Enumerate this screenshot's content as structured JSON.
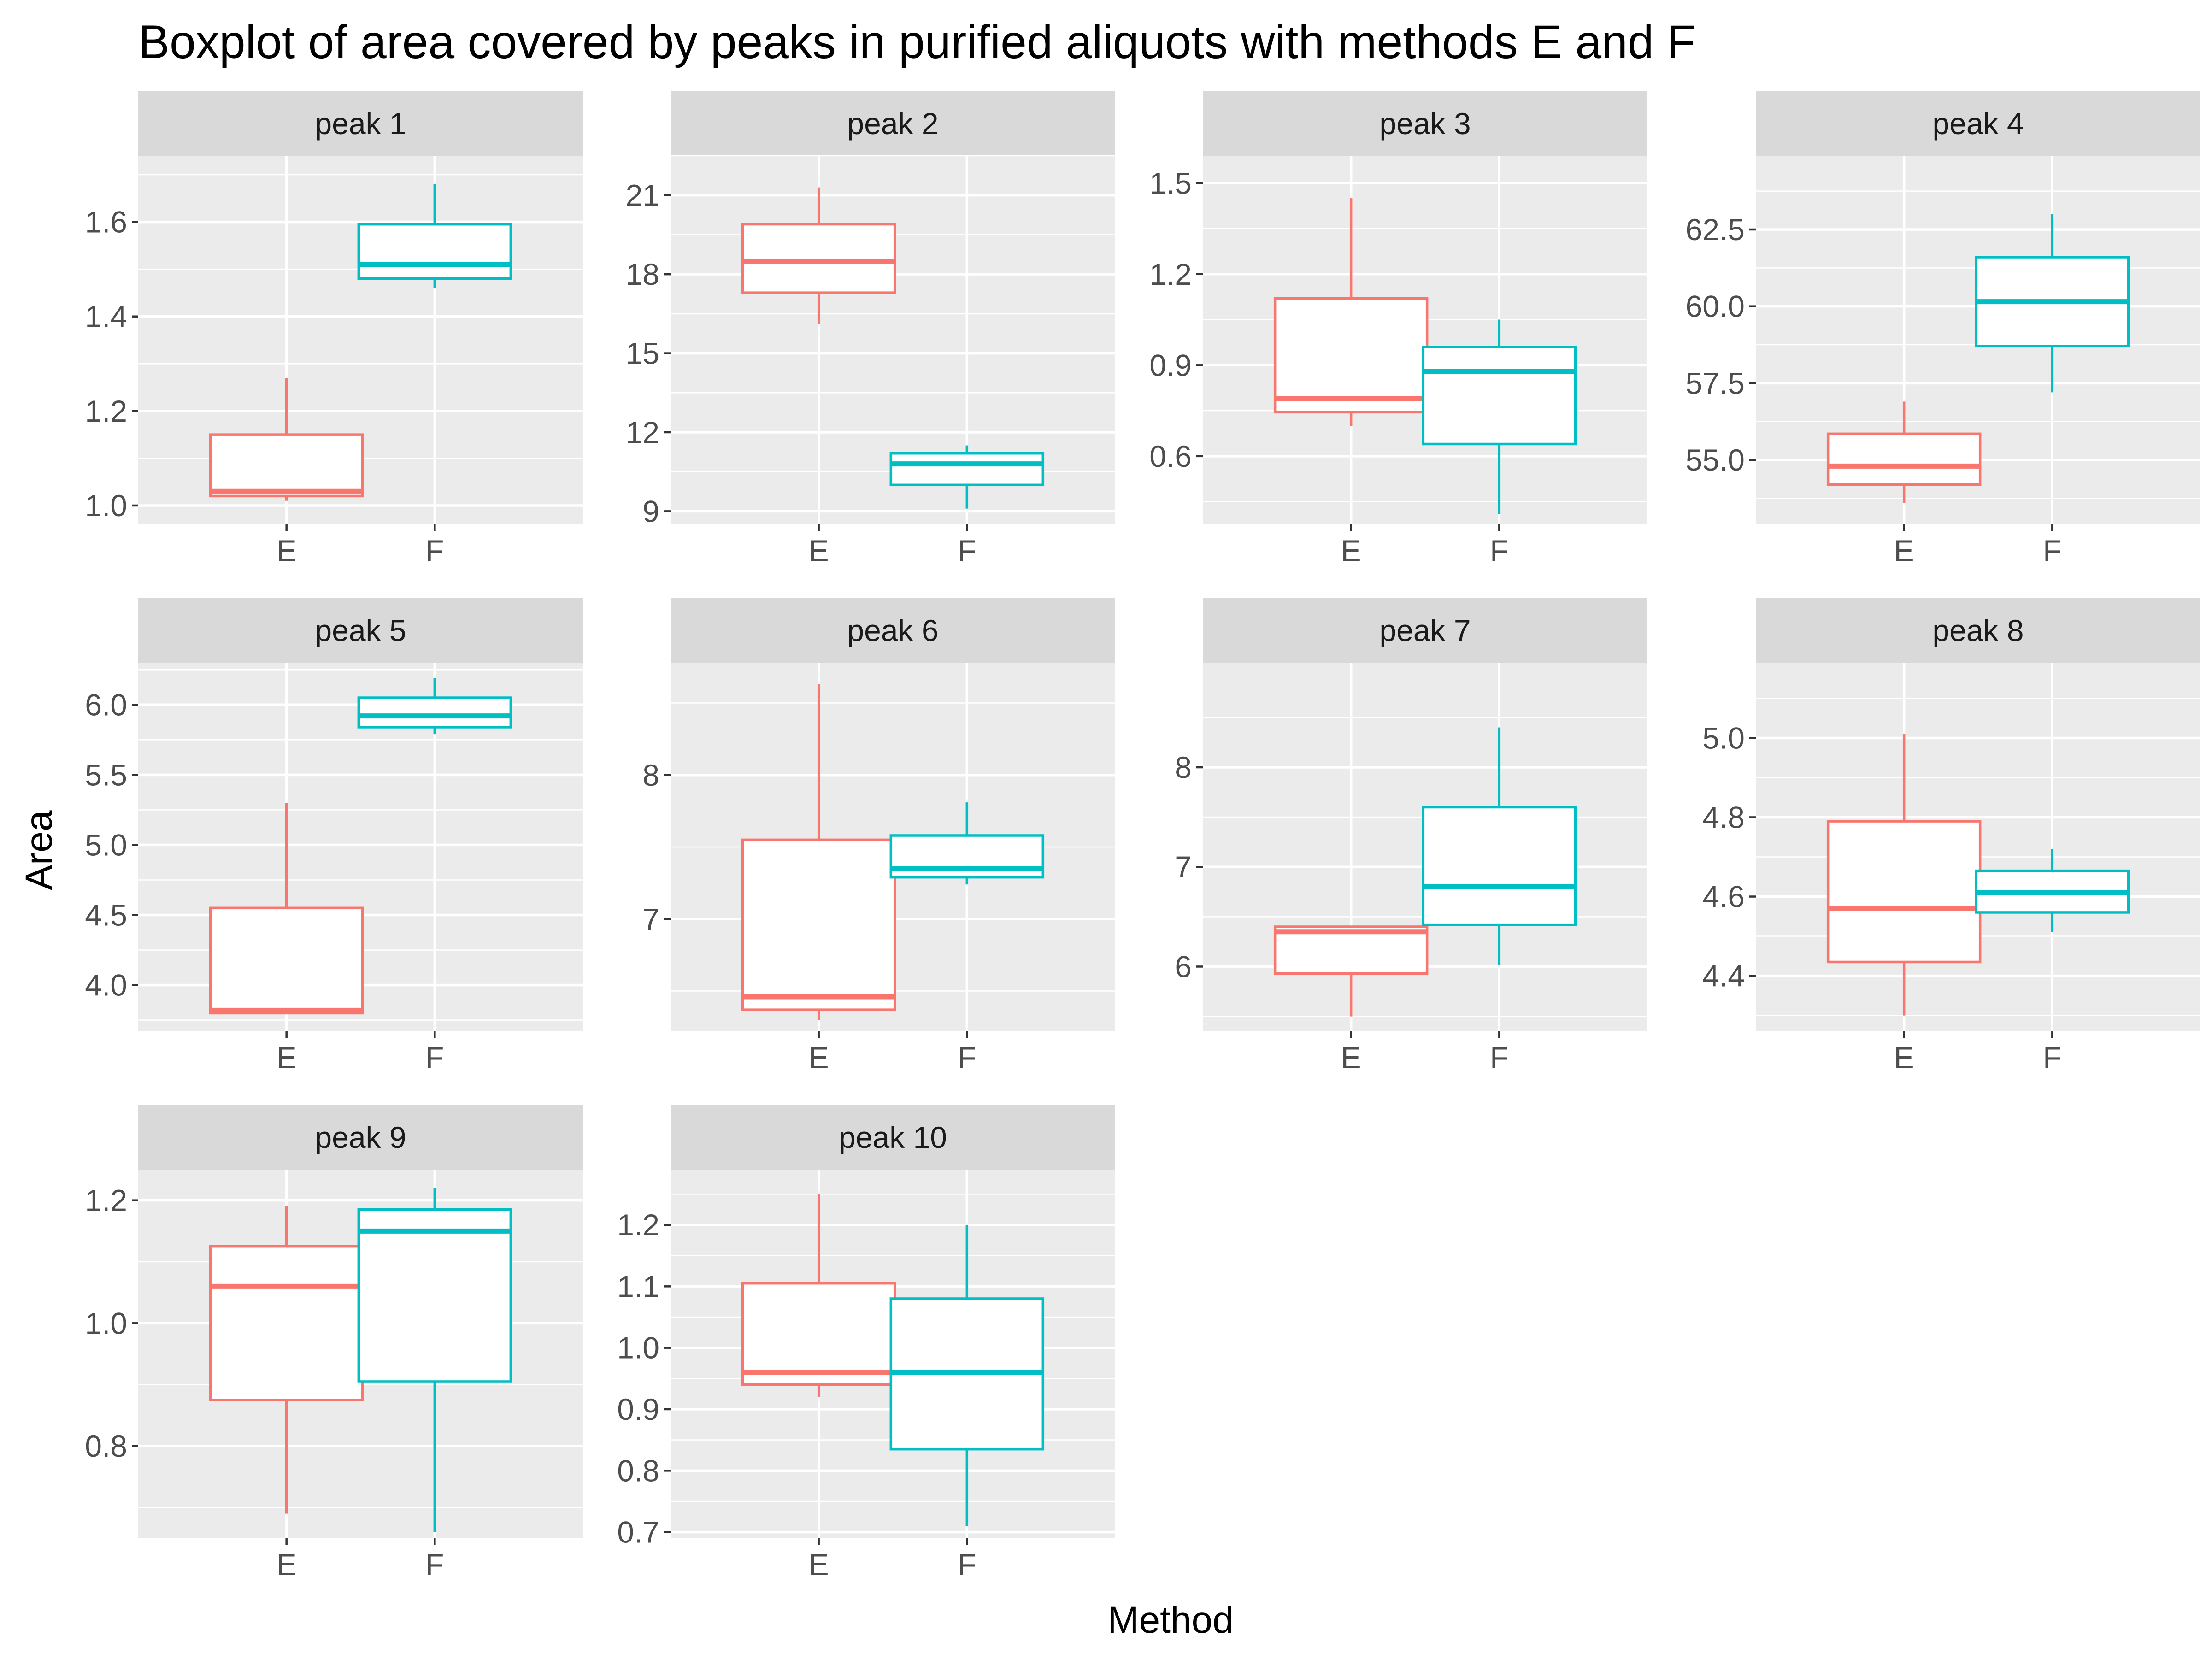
{
  "chart_data": {
    "type": "boxplot",
    "title": "Boxplot of area covered by peaks in purified aliquots with methods E and F",
    "xlabel": "Method",
    "ylabel": "Area",
    "categories": [
      "E",
      "F"
    ],
    "colors": {
      "E": "#F8766D",
      "F": "#00BFC4"
    },
    "facet_layout": {
      "columns": 4,
      "rows": 3
    },
    "panels": [
      {
        "name": "peak 1",
        "ylim": [
          0.96,
          1.74
        ],
        "yticks": [
          1.0,
          1.2,
          1.4,
          1.6
        ],
        "tick_labels": [
          "1.0",
          "1.2",
          "1.4",
          "1.6"
        ],
        "boxes": [
          {
            "method": "E",
            "min": 1.01,
            "q1": 1.02,
            "median": 1.03,
            "q3": 1.15,
            "max": 1.27
          },
          {
            "method": "F",
            "min": 1.46,
            "q1": 1.48,
            "median": 1.51,
            "q3": 1.595,
            "max": 1.68
          }
        ]
      },
      {
        "name": "peak 2",
        "ylim": [
          8.5,
          22.5
        ],
        "yticks": [
          9,
          12,
          15,
          18,
          21
        ],
        "tick_labels": [
          "9",
          "12",
          "15",
          "18",
          "21"
        ],
        "boxes": [
          {
            "method": "E",
            "min": 16.1,
            "q1": 17.3,
            "median": 18.5,
            "q3": 19.9,
            "max": 21.3
          },
          {
            "method": "F",
            "min": 9.1,
            "q1": 10.0,
            "median": 10.8,
            "q3": 11.2,
            "max": 11.5
          }
        ]
      },
      {
        "name": "peak 3",
        "ylim": [
          0.375,
          1.59
        ],
        "yticks": [
          0.6,
          0.9,
          1.2,
          1.5
        ],
        "tick_labels": [
          "0.6",
          "0.9",
          "1.2",
          "1.5"
        ],
        "boxes": [
          {
            "method": "E",
            "min": 0.7,
            "q1": 0.745,
            "median": 0.79,
            "q3": 1.12,
            "max": 1.45
          },
          {
            "method": "F",
            "min": 0.41,
            "q1": 0.64,
            "median": 0.88,
            "q3": 0.96,
            "max": 1.05
          }
        ]
      },
      {
        "name": "peak 4",
        "ylim": [
          52.9,
          64.9
        ],
        "yticks": [
          55.0,
          57.5,
          60.0,
          62.5
        ],
        "tick_labels": [
          "55.0",
          "57.5",
          "60.0",
          "62.5"
        ],
        "boxes": [
          {
            "method": "E",
            "min": 53.6,
            "q1": 54.2,
            "median": 54.8,
            "q3": 55.85,
            "max": 56.9
          },
          {
            "method": "F",
            "min": 57.2,
            "q1": 58.7,
            "median": 60.15,
            "q3": 61.6,
            "max": 63.0
          }
        ]
      },
      {
        "name": "peak 5",
        "ylim": [
          3.67,
          6.3
        ],
        "yticks": [
          4.0,
          4.5,
          5.0,
          5.5,
          6.0
        ],
        "tick_labels": [
          "4.0",
          "4.5",
          "5.0",
          "5.5",
          "6.0"
        ],
        "boxes": [
          {
            "method": "E",
            "min": 3.8,
            "q1": 3.8,
            "median": 3.82,
            "q3": 4.55,
            "max": 5.3
          },
          {
            "method": "F",
            "min": 5.79,
            "q1": 5.84,
            "median": 5.92,
            "q3": 6.05,
            "max": 6.19
          }
        ]
      },
      {
        "name": "peak 6",
        "ylim": [
          6.22,
          8.78
        ],
        "yticks": [
          7,
          8
        ],
        "tick_labels": [
          "7",
          "8"
        ],
        "boxes": [
          {
            "method": "E",
            "min": 6.3,
            "q1": 6.37,
            "median": 6.46,
            "q3": 7.55,
            "max": 8.63
          },
          {
            "method": "F",
            "min": 7.24,
            "q1": 7.29,
            "median": 7.35,
            "q3": 7.58,
            "max": 7.81
          }
        ]
      },
      {
        "name": "peak 7",
        "ylim": [
          5.35,
          9.05
        ],
        "yticks": [
          6,
          7,
          8
        ],
        "tick_labels": [
          "6",
          "7",
          "8"
        ],
        "boxes": [
          {
            "method": "E",
            "min": 5.5,
            "q1": 5.93,
            "median": 6.35,
            "q3": 6.4,
            "max": 6.4
          },
          {
            "method": "F",
            "min": 6.02,
            "q1": 6.42,
            "median": 6.8,
            "q3": 7.6,
            "max": 8.4
          }
        ]
      },
      {
        "name": "peak 8",
        "ylim": [
          4.26,
          5.19
        ],
        "yticks": [
          4.4,
          4.6,
          4.8,
          5.0
        ],
        "tick_labels": [
          "4.4",
          "4.6",
          "4.8",
          "5.0"
        ],
        "boxes": [
          {
            "method": "E",
            "min": 4.3,
            "q1": 4.435,
            "median": 4.57,
            "q3": 4.79,
            "max": 5.01
          },
          {
            "method": "F",
            "min": 4.51,
            "q1": 4.56,
            "median": 4.61,
            "q3": 4.665,
            "max": 4.72
          }
        ]
      },
      {
        "name": "peak 9",
        "ylim": [
          0.65,
          1.25
        ],
        "yticks": [
          0.8,
          1.0,
          1.2
        ],
        "tick_labels": [
          "0.8",
          "1.0",
          "1.2"
        ],
        "boxes": [
          {
            "method": "E",
            "min": 0.69,
            "q1": 0.875,
            "median": 1.06,
            "q3": 1.125,
            "max": 1.19
          },
          {
            "method": "F",
            "min": 0.66,
            "q1": 0.905,
            "median": 1.15,
            "q3": 1.185,
            "max": 1.22
          }
        ]
      },
      {
        "name": "peak 10",
        "ylim": [
          0.69,
          1.29
        ],
        "yticks": [
          0.7,
          0.8,
          0.9,
          1.0,
          1.1,
          1.2
        ],
        "tick_labels": [
          "0.7",
          "0.8",
          "0.9",
          "1.0",
          "1.1",
          "1.2"
        ],
        "boxes": [
          {
            "method": "E",
            "min": 0.92,
            "q1": 0.94,
            "median": 0.96,
            "q3": 1.105,
            "max": 1.25
          },
          {
            "method": "F",
            "min": 0.71,
            "q1": 0.835,
            "median": 0.96,
            "q3": 1.08,
            "max": 1.2
          }
        ]
      }
    ]
  }
}
